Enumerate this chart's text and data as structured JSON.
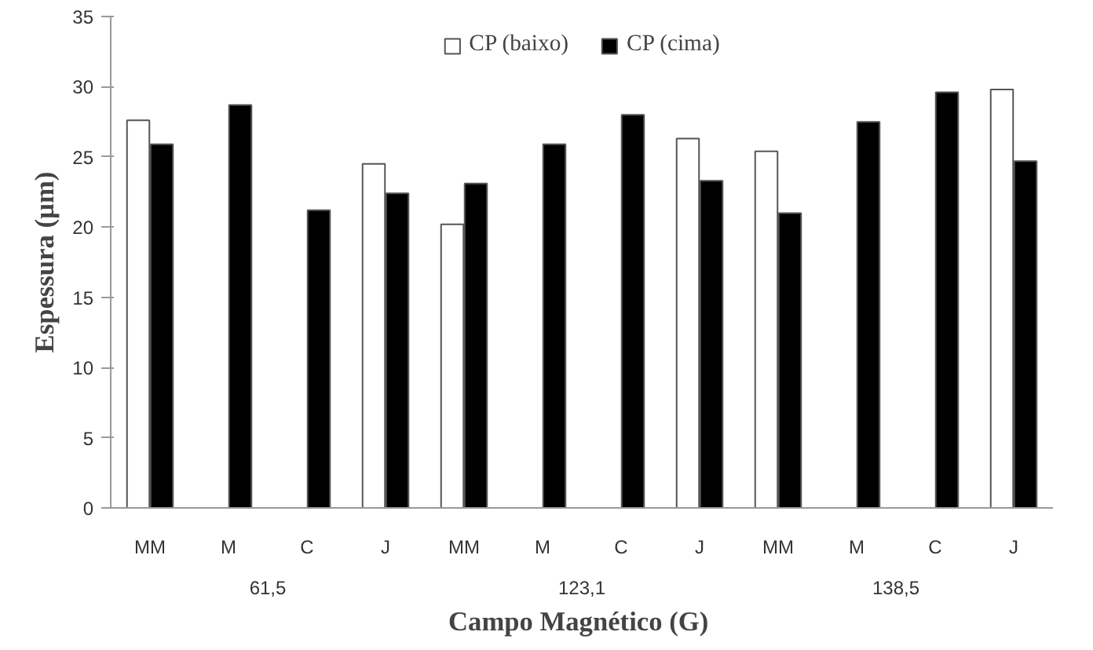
{
  "chart_data": {
    "type": "bar",
    "xlabel": "Campo Magnético  (G)",
    "ylabel": "Espessura (µm)",
    "categories": [
      "MM",
      "M",
      "C",
      "J",
      "MM",
      "M",
      "C",
      "J",
      "MM",
      "M",
      "C",
      "J"
    ],
    "series": [
      {
        "name": "CP (baixo)",
        "color": "#ffffff",
        "values": [
          27.6,
          null,
          null,
          24.5,
          20.2,
          null,
          null,
          26.3,
          25.4,
          null,
          null,
          29.8
        ]
      },
      {
        "name": "CP (cima)",
        "color": "#000000",
        "values": [
          25.9,
          28.7,
          21.2,
          22.4,
          23.1,
          25.9,
          28.0,
          23.3,
          21.0,
          27.5,
          29.6,
          24.7
        ]
      }
    ],
    "annotations": [
      "61,5",
      "123,1",
      "138,5"
    ],
    "ylim": [
      0,
      35
    ],
    "yticks": [
      0,
      5,
      10,
      15,
      20,
      25,
      30,
      35
    ],
    "grid": false,
    "legend": "top"
  }
}
